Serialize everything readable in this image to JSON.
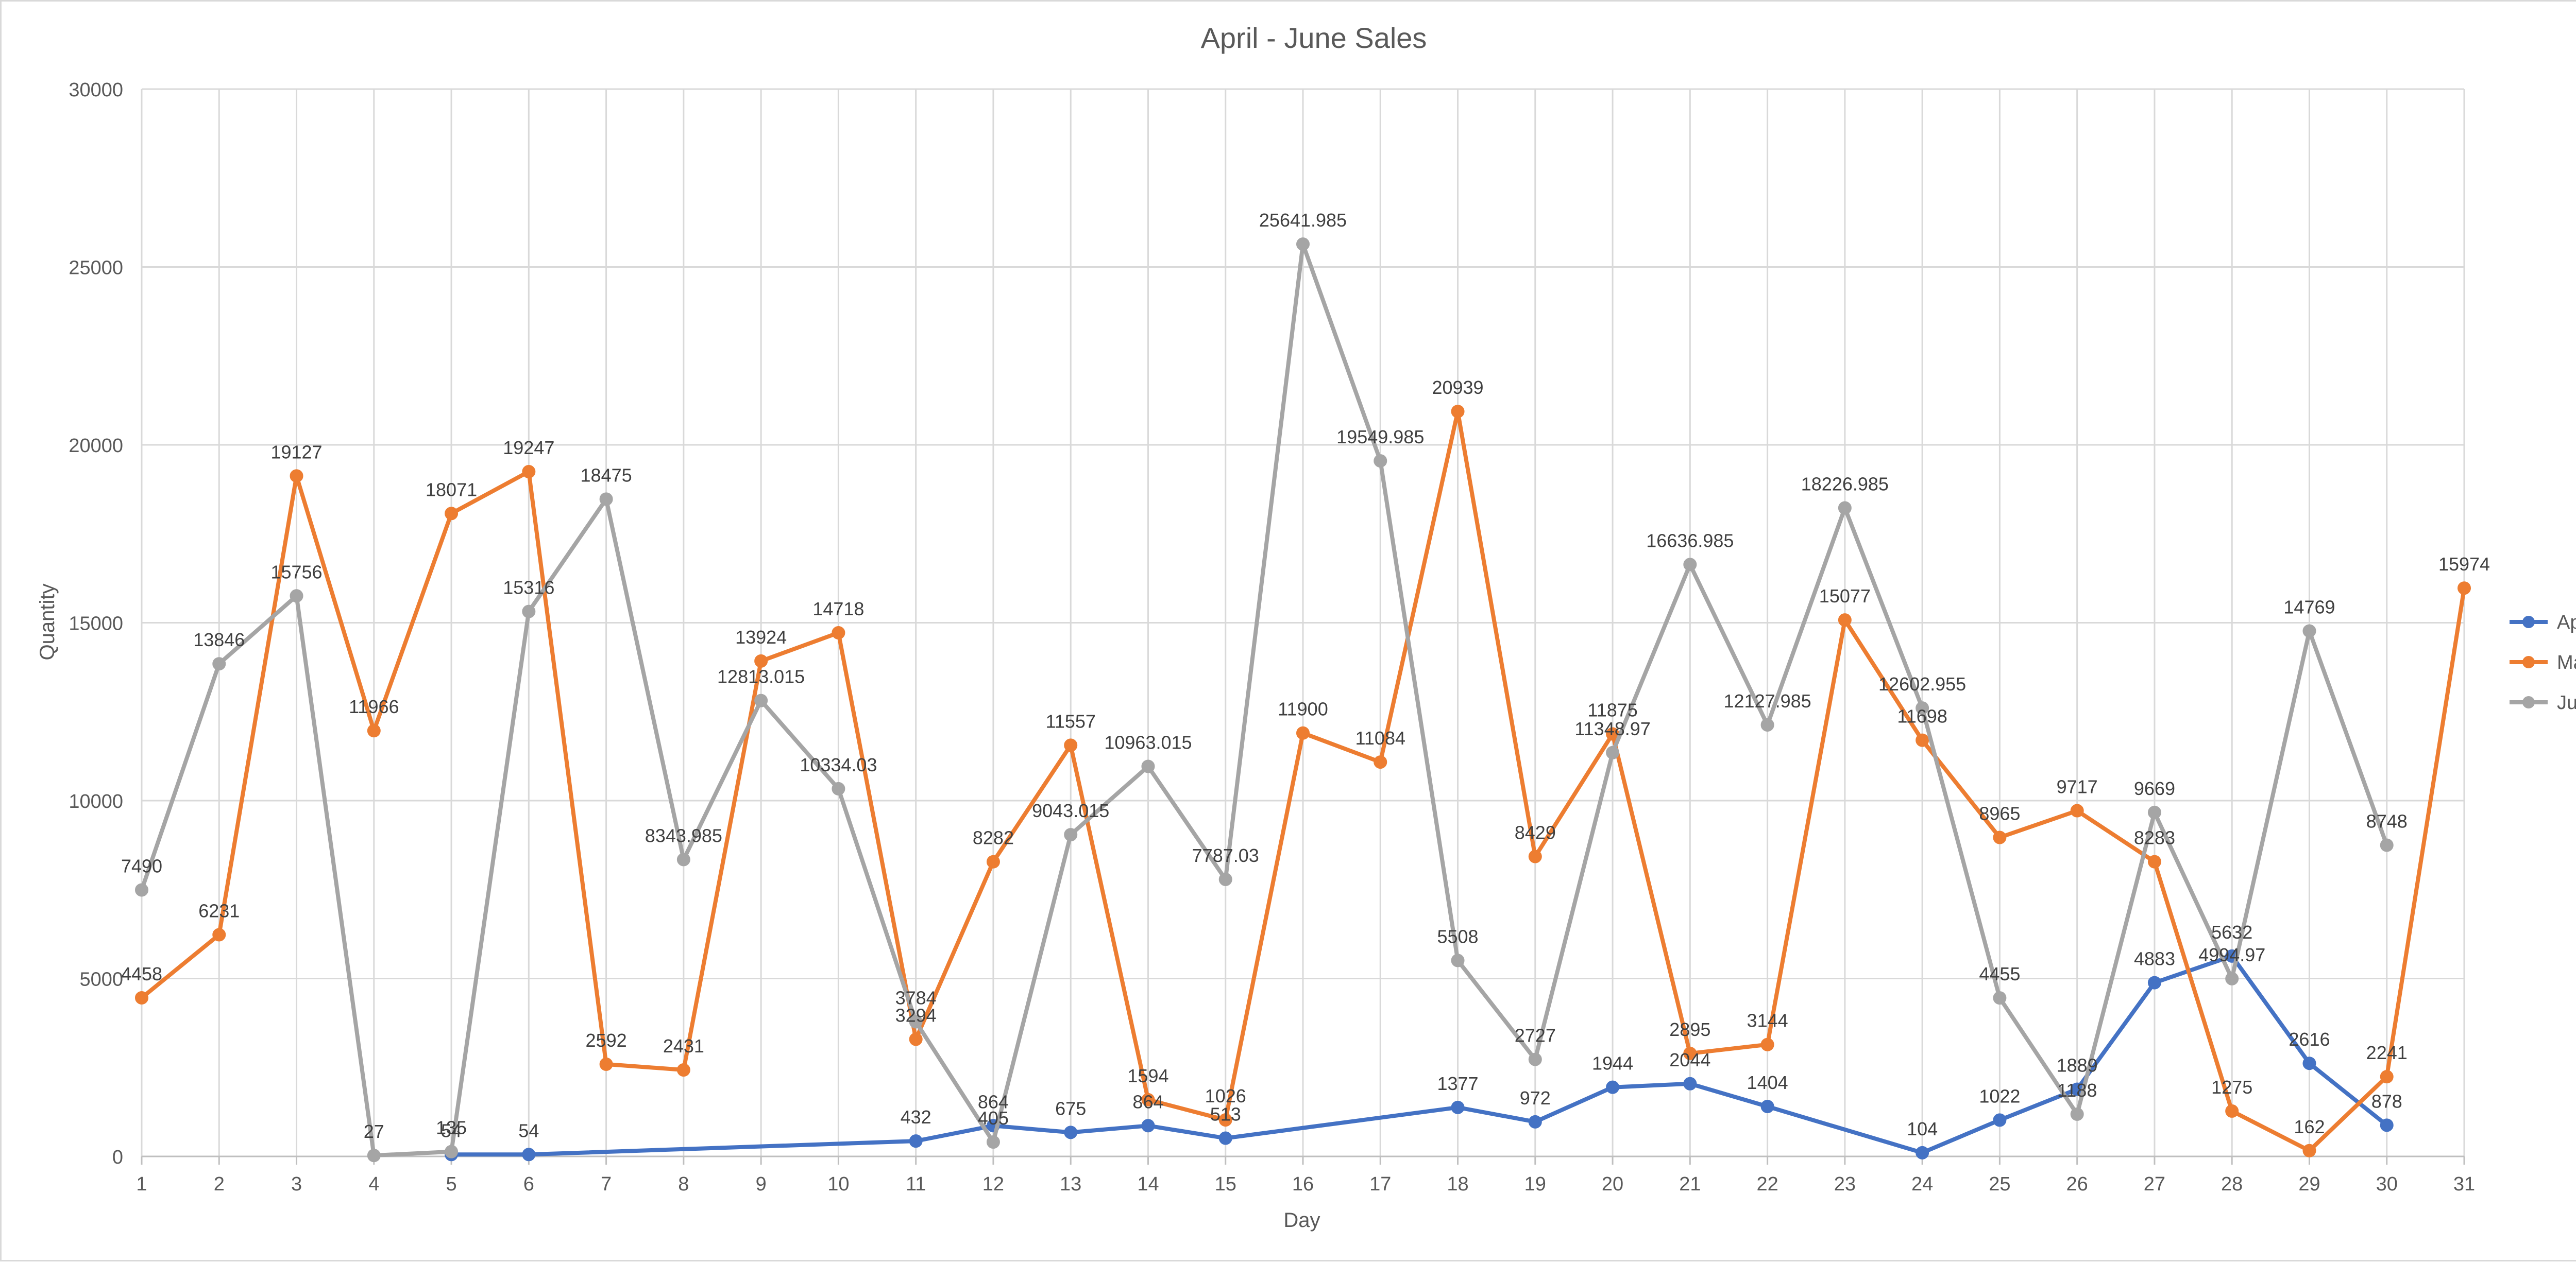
{
  "chart_data": {
    "type": "line",
    "title": "April - June Sales",
    "xlabel": "Day",
    "ylabel": "Quantity",
    "ylim": [
      0,
      30000
    ],
    "ytick_step": 5000,
    "grid": true,
    "legend_position": "right",
    "x": [
      1,
      2,
      3,
      4,
      5,
      6,
      7,
      8,
      9,
      10,
      11,
      12,
      13,
      14,
      15,
      16,
      17,
      18,
      19,
      20,
      21,
      22,
      23,
      24,
      25,
      26,
      27,
      28,
      29,
      30,
      31
    ],
    "series": [
      {
        "name": "April",
        "color": "#4472c4",
        "points": [
          {
            "x": 5,
            "y": 54,
            "label": "54"
          },
          {
            "x": 6,
            "y": 54,
            "label": "54"
          },
          {
            "x": 11,
            "y": 432,
            "label": "432"
          },
          {
            "x": 12,
            "y": 864,
            "label": "864"
          },
          {
            "x": 13,
            "y": 675,
            "label": "675"
          },
          {
            "x": 14,
            "y": 864,
            "label": "864"
          },
          {
            "x": 15,
            "y": 513,
            "label": "513"
          },
          {
            "x": 18,
            "y": 1377,
            "label": "1377"
          },
          {
            "x": 19,
            "y": 972,
            "label": "972"
          },
          {
            "x": 20,
            "y": 1944,
            "label": "1944"
          },
          {
            "x": 21,
            "y": 2044,
            "label": "2044"
          },
          {
            "x": 22,
            "y": 1404,
            "label": "1404"
          },
          {
            "x": 24,
            "y": 104,
            "label": "104"
          },
          {
            "x": 25,
            "y": 1022,
            "label": "1022"
          },
          {
            "x": 26,
            "y": 1889,
            "label": "1889"
          },
          {
            "x": 27,
            "y": 4883,
            "label": "4883"
          },
          {
            "x": 28,
            "y": 5632,
            "label": "5632"
          },
          {
            "x": 29,
            "y": 2616,
            "label": "2616"
          },
          {
            "x": 30,
            "y": 878,
            "label": "878"
          }
        ]
      },
      {
        "name": "May",
        "color": "#ed7d31",
        "points": [
          {
            "x": 1,
            "y": 4458,
            "label": "4458"
          },
          {
            "x": 2,
            "y": 6231,
            "label": "6231"
          },
          {
            "x": 3,
            "y": 19127,
            "label": "19127"
          },
          {
            "x": 4,
            "y": 11966,
            "label": "11966"
          },
          {
            "x": 5,
            "y": 18071,
            "label": "18071"
          },
          {
            "x": 6,
            "y": 19247,
            "label": "19247"
          },
          {
            "x": 7,
            "y": 2592,
            "label": "2592"
          },
          {
            "x": 8,
            "y": 2431,
            "label": "2431"
          },
          {
            "x": 9,
            "y": 13924,
            "label": "13924"
          },
          {
            "x": 10,
            "y": 14718,
            "label": "14718"
          },
          {
            "x": 11,
            "y": 3294,
            "label": "3294"
          },
          {
            "x": 12,
            "y": 8282,
            "label": "8282"
          },
          {
            "x": 13,
            "y": 11557,
            "label": "11557"
          },
          {
            "x": 14,
            "y": 1594,
            "label": "1594"
          },
          {
            "x": 15,
            "y": 1026,
            "label": "1026"
          },
          {
            "x": 16,
            "y": 11900,
            "label": "11900"
          },
          {
            "x": 17,
            "y": 11084,
            "label": "11084"
          },
          {
            "x": 18,
            "y": 20939,
            "label": "20939"
          },
          {
            "x": 19,
            "y": 8429,
            "label": "8429"
          },
          {
            "x": 20,
            "y": 11875,
            "label": "11875"
          },
          {
            "x": 21,
            "y": 2895,
            "label": "2895"
          },
          {
            "x": 22,
            "y": 3144,
            "label": "3144"
          },
          {
            "x": 23,
            "y": 15077,
            "label": "15077"
          },
          {
            "x": 24,
            "y": 11698,
            "label": "11698"
          },
          {
            "x": 25,
            "y": 8965,
            "label": "8965"
          },
          {
            "x": 26,
            "y": 9717,
            "label": "9717"
          },
          {
            "x": 27,
            "y": 8283,
            "label": "8283"
          },
          {
            "x": 28,
            "y": 1275,
            "label": "1275"
          },
          {
            "x": 29,
            "y": 162,
            "label": "162"
          },
          {
            "x": 30,
            "y": 2241,
            "label": "2241"
          },
          {
            "x": 31,
            "y": 15974,
            "label": "15974"
          }
        ]
      },
      {
        "name": "June",
        "color": "#a5a5a5",
        "points": [
          {
            "x": 1,
            "y": 7490,
            "label": "7490"
          },
          {
            "x": 2,
            "y": 13846,
            "label": "13846"
          },
          {
            "x": 3,
            "y": 15756,
            "label": "15756"
          },
          {
            "x": 4,
            "y": 27,
            "label": "27"
          },
          {
            "x": 5,
            "y": 135,
            "label": "135"
          },
          {
            "x": 6,
            "y": 15316,
            "label": "15316"
          },
          {
            "x": 7,
            "y": 18475,
            "label": "18475"
          },
          {
            "x": 8,
            "y": 8343.985,
            "label": "8343.985"
          },
          {
            "x": 9,
            "y": 12813.015,
            "label": "12813.015"
          },
          {
            "x": 10,
            "y": 10334.03,
            "label": "10334.03"
          },
          {
            "x": 11,
            "y": 3784,
            "label": "3784"
          },
          {
            "x": 12,
            "y": 405,
            "label": "405"
          },
          {
            "x": 13,
            "y": 9043.015,
            "label": "9043.015"
          },
          {
            "x": 14,
            "y": 10963.015,
            "label": "10963.015"
          },
          {
            "x": 15,
            "y": 7787.03,
            "label": "7787.03"
          },
          {
            "x": 16,
            "y": 25641.985,
            "label": "25641.985"
          },
          {
            "x": 17,
            "y": 19549.985,
            "label": "19549.985"
          },
          {
            "x": 18,
            "y": 5508,
            "label": "5508"
          },
          {
            "x": 19,
            "y": 2727,
            "label": "2727"
          },
          {
            "x": 20,
            "y": 11348.97,
            "label": "11348.97"
          },
          {
            "x": 21,
            "y": 16636.985,
            "label": "16636.985"
          },
          {
            "x": 22,
            "y": 12127.985,
            "label": "12127.985"
          },
          {
            "x": 23,
            "y": 18226.985,
            "label": "18226.985"
          },
          {
            "x": 24,
            "y": 12602.955,
            "label": "12602.955"
          },
          {
            "x": 25,
            "y": 4455,
            "label": "4455"
          },
          {
            "x": 26,
            "y": 1188,
            "label": "1188"
          },
          {
            "x": 27,
            "y": 9669,
            "label": "9669"
          },
          {
            "x": 28,
            "y": 4994.97,
            "label": "4994.97"
          },
          {
            "x": 29,
            "y": 14769,
            "label": "14769"
          },
          {
            "x": 30,
            "y": 8748,
            "label": "8748"
          }
        ]
      }
    ]
  }
}
